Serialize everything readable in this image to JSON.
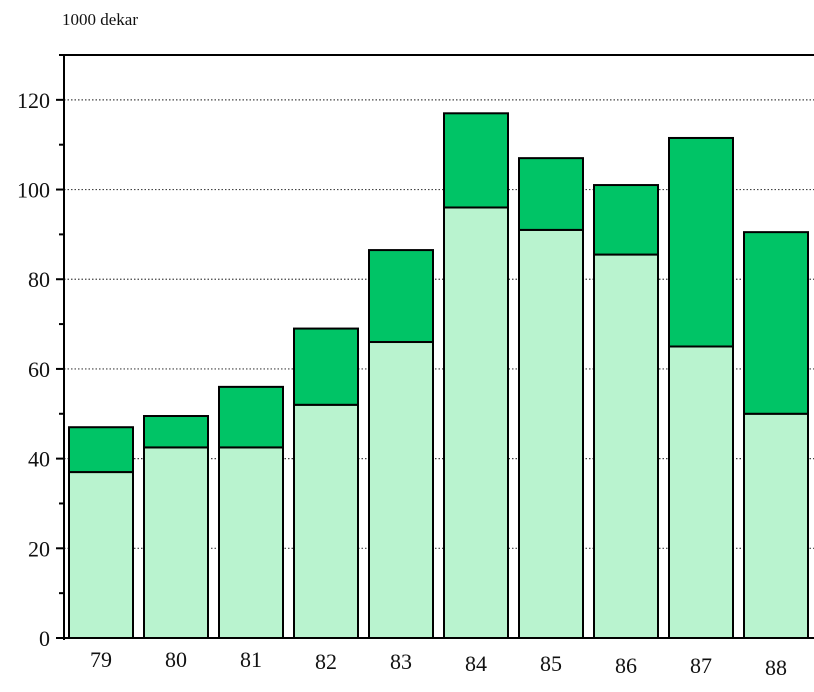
{
  "chart_data": {
    "type": "bar",
    "stacked": true,
    "y_unit_label": "1000 dekar",
    "categories": [
      "79",
      "80",
      "81",
      "82",
      "83",
      "84",
      "85",
      "86",
      "87",
      "88"
    ],
    "series": [
      {
        "values": [
          37,
          42.5,
          42.5,
          52,
          66,
          96,
          91,
          85.5,
          65,
          50
        ],
        "color": "#b9f3cf"
      },
      {
        "values": [
          10,
          7,
          13.5,
          17,
          20.5,
          21,
          16,
          15.5,
          46.5,
          40.5
        ],
        "color": "#00c466"
      }
    ],
    "ylim": [
      0,
      130
    ],
    "yticks": [
      0,
      20,
      40,
      60,
      80,
      100,
      120
    ],
    "grid": "dotted horizontal lines at labeled ticks"
  }
}
